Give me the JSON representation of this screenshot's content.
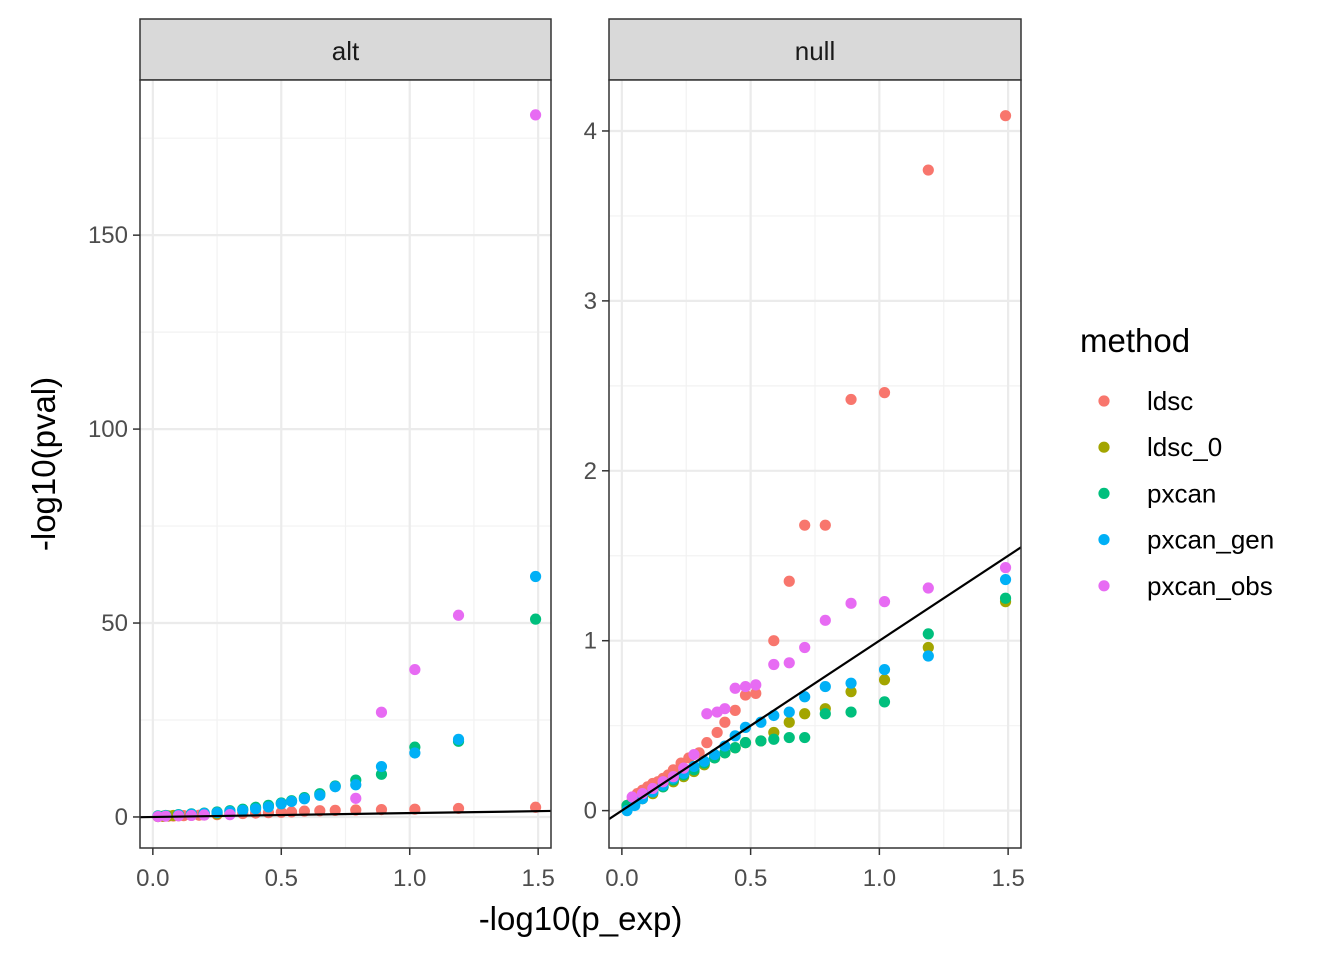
{
  "chart_data": {
    "type": "scatter",
    "xlabel": "-log10(p_exp)",
    "ylabel": "-log10(pval)",
    "legend": {
      "title": "method",
      "placement": "right",
      "entries": [
        {
          "name": "ldsc",
          "color": "#F8766D"
        },
        {
          "name": "ldsc_0",
          "color": "#A3A500"
        },
        {
          "name": "pxcan",
          "color": "#00BF7D"
        },
        {
          "name": "pxcan_gen",
          "color": "#00B0F6"
        },
        {
          "name": "pxcan_obs",
          "color": "#E76BF3"
        }
      ]
    },
    "reference_line": "y = x",
    "grid": true,
    "panels": [
      {
        "strip": "alt",
        "xlim": [
          -0.05,
          1.55
        ],
        "ylim": [
          -8,
          190
        ],
        "x_ticks": [
          0,
          0.5,
          1,
          1.5
        ],
        "x_tick_labels": [
          "0.0",
          "0.5",
          "1.0",
          "1.5"
        ],
        "y_ticks": [
          0,
          50,
          100,
          150
        ],
        "y_tick_labels": [
          "0",
          "50",
          "100",
          "150"
        ],
        "series": [
          {
            "name": "ldsc",
            "x": [
              0.02,
              0.04,
              0.06,
              0.08,
              0.1,
              0.12,
              0.15,
              0.18,
              0.2,
              0.25,
              0.3,
              0.35,
              0.4,
              0.45,
              0.5,
              0.54,
              0.59,
              0.65,
              0.71,
              0.79,
              0.89,
              1.02,
              1.19,
              1.49
            ],
            "y": [
              0.1,
              0.15,
              0.2,
              0.25,
              0.3,
              0.35,
              0.4,
              0.45,
              0.5,
              0.6,
              0.8,
              0.9,
              1.0,
              1.1,
              1.2,
              1.3,
              1.5,
              1.6,
              1.7,
              1.8,
              1.9,
              2.0,
              2.2,
              2.5
            ]
          },
          {
            "name": "ldsc_0",
            "x": [
              0.02,
              0.04,
              0.06,
              0.08,
              0.1,
              0.15,
              0.2,
              0.25,
              0.3
            ],
            "y": [
              0.1,
              0.2,
              0.3,
              0.4,
              0.5,
              0.6,
              0.7,
              0.8,
              0.9
            ]
          },
          {
            "name": "pxcan",
            "x": [
              0.02,
              0.05,
              0.1,
              0.15,
              0.2,
              0.25,
              0.3,
              0.35,
              0.4,
              0.45,
              0.5,
              0.54,
              0.59,
              0.65,
              0.71,
              0.79,
              0.89,
              1.02,
              1.19,
              1.49
            ],
            "y": [
              0.3,
              0.4,
              0.6,
              0.8,
              1.0,
              1.3,
              1.6,
              2.0,
              2.5,
              3.0,
              3.6,
              4.2,
              5.0,
              6.0,
              8.0,
              9.5,
              11.0,
              18.0,
              19.5,
              51.0
            ]
          },
          {
            "name": "pxcan_gen",
            "x": [
              0.02,
              0.05,
              0.1,
              0.15,
              0.2,
              0.25,
              0.3,
              0.35,
              0.4,
              0.45,
              0.5,
              0.54,
              0.59,
              0.65,
              0.71,
              0.79,
              0.89,
              1.02,
              1.19,
              1.49
            ],
            "y": [
              0.2,
              0.3,
              0.5,
              0.7,
              0.9,
              1.1,
              1.4,
              1.7,
              2.1,
              2.6,
              3.4,
              4.0,
              4.7,
              5.6,
              7.8,
              8.3,
              13.0,
              16.5,
              20.0,
              62.0
            ]
          },
          {
            "name": "pxcan_obs",
            "x": [
              0.02,
              0.05,
              0.1,
              0.15,
              0.2,
              0.3,
              0.79,
              0.89,
              1.02,
              1.19,
              1.49
            ],
            "y": [
              0.1,
              0.2,
              0.3,
              0.4,
              0.5,
              0.6,
              4.8,
              27.0,
              38.0,
              52.0,
              181.0
            ]
          }
        ]
      },
      {
        "strip": "null",
        "xlim": [
          -0.05,
          1.55
        ],
        "ylim": [
          -0.22,
          4.3
        ],
        "x_ticks": [
          0,
          0.5,
          1,
          1.5
        ],
        "x_tick_labels": [
          "0.0",
          "0.5",
          "1.0",
          "1.5"
        ],
        "y_ticks": [
          0,
          1,
          2,
          3,
          4
        ],
        "y_tick_labels": [
          "0",
          "1",
          "2",
          "3",
          "4"
        ],
        "series": [
          {
            "name": "ldsc",
            "x": [
              0.02,
              0.04,
              0.06,
              0.08,
              0.1,
              0.12,
              0.14,
              0.16,
              0.18,
              0.2,
              0.23,
              0.26,
              0.3,
              0.33,
              0.37,
              0.4,
              0.44,
              0.48,
              0.52,
              0.59,
              0.65,
              0.71,
              0.79,
              0.89,
              1.02,
              1.19,
              1.49
            ],
            "y": [
              0.03,
              0.06,
              0.1,
              0.12,
              0.14,
              0.16,
              0.17,
              0.19,
              0.21,
              0.24,
              0.28,
              0.31,
              0.34,
              0.4,
              0.46,
              0.52,
              0.59,
              0.68,
              0.69,
              1.0,
              1.35,
              1.68,
              1.68,
              2.42,
              2.46,
              3.77,
              4.09
            ]
          },
          {
            "name": "ldsc_0",
            "x": [
              0.02,
              0.05,
              0.08,
              0.12,
              0.16,
              0.2,
              0.24,
              0.28,
              0.32,
              0.36,
              0.4,
              0.44,
              0.48,
              0.54,
              0.59,
              0.65,
              0.71,
              0.79,
              0.89,
              1.02,
              1.19,
              1.49
            ],
            "y": [
              0.02,
              0.04,
              0.07,
              0.1,
              0.14,
              0.17,
              0.2,
              0.23,
              0.27,
              0.31,
              0.34,
              0.37,
              0.4,
              0.41,
              0.46,
              0.52,
              0.57,
              0.6,
              0.7,
              0.77,
              0.96,
              1.23
            ]
          },
          {
            "name": "pxcan",
            "x": [
              0.02,
              0.05,
              0.08,
              0.12,
              0.16,
              0.2,
              0.24,
              0.28,
              0.32,
              0.36,
              0.4,
              0.44,
              0.48,
              0.54,
              0.59,
              0.65,
              0.71,
              0.79,
              0.89,
              1.02,
              1.19,
              1.49
            ],
            "y": [
              0.03,
              0.05,
              0.08,
              0.11,
              0.14,
              0.18,
              0.21,
              0.24,
              0.28,
              0.31,
              0.34,
              0.37,
              0.4,
              0.41,
              0.42,
              0.43,
              0.43,
              0.57,
              0.58,
              0.64,
              1.04,
              1.25
            ]
          },
          {
            "name": "pxcan_gen",
            "x": [
              0.02,
              0.05,
              0.08,
              0.12,
              0.16,
              0.2,
              0.24,
              0.28,
              0.32,
              0.36,
              0.4,
              0.44,
              0.48,
              0.54,
              0.59,
              0.65,
              0.71,
              0.79,
              0.89,
              1.02,
              1.19,
              1.49
            ],
            "y": [
              0.0,
              0.03,
              0.07,
              0.11,
              0.15,
              0.19,
              0.22,
              0.26,
              0.29,
              0.33,
              0.38,
              0.44,
              0.49,
              0.52,
              0.56,
              0.58,
              0.67,
              0.73,
              0.75,
              0.83,
              0.91,
              1.36
            ]
          },
          {
            "name": "pxcan_obs",
            "x": [
              0.04,
              0.08,
              0.12,
              0.16,
              0.2,
              0.24,
              0.28,
              0.33,
              0.37,
              0.4,
              0.44,
              0.48,
              0.52,
              0.59,
              0.65,
              0.71,
              0.79,
              0.89,
              1.02,
              1.19,
              1.49
            ],
            "y": [
              0.08,
              0.1,
              0.13,
              0.17,
              0.2,
              0.25,
              0.33,
              0.57,
              0.58,
              0.6,
              0.72,
              0.73,
              0.74,
              0.86,
              0.87,
              0.96,
              1.12,
              1.22,
              1.23,
              1.31,
              1.43
            ]
          }
        ]
      }
    ]
  }
}
